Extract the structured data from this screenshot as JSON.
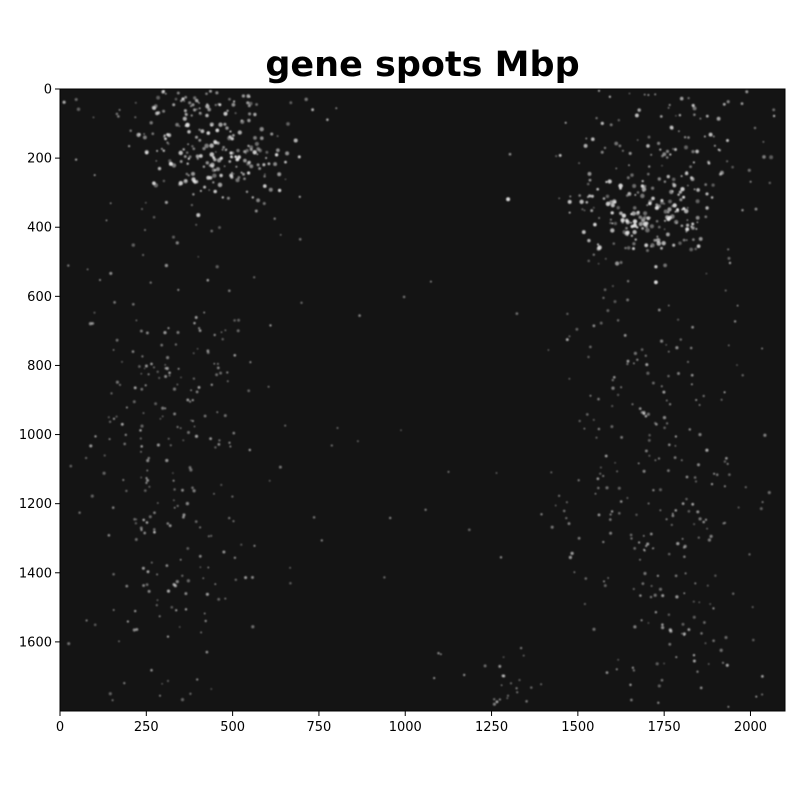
{
  "chart_data": {
    "type": "heatmap",
    "title": "gene spots Mbp",
    "xlabel": "",
    "ylabel": "",
    "xlim": [
      0,
      2100
    ],
    "ylim": [
      1800,
      0
    ],
    "x_ticks": [
      0,
      250,
      500,
      750,
      1000,
      1250,
      1500,
      1750,
      2000
    ],
    "y_ticks": [
      0,
      200,
      400,
      600,
      800,
      1000,
      1200,
      1400,
      1600
    ],
    "background_color": "#141414",
    "spot_color": "#e6e6e6",
    "colormap": "gray",
    "grid": false,
    "spot_clusters": [
      {
        "region": "top-left",
        "cx": 470,
        "cy": 190,
        "sx": 110,
        "sy": 70,
        "count": 190,
        "intensity": 0.95
      },
      {
        "region": "top-left-upper",
        "cx": 380,
        "cy": 40,
        "sx": 180,
        "sy": 30,
        "count": 70,
        "intensity": 0.7
      },
      {
        "region": "top-right",
        "cx": 1700,
        "cy": 370,
        "sx": 100,
        "sy": 60,
        "count": 170,
        "intensity": 0.95
      },
      {
        "region": "top-right-upper",
        "cx": 1760,
        "cy": 150,
        "sx": 160,
        "sy": 110,
        "count": 130,
        "intensity": 0.75
      },
      {
        "region": "left-band",
        "cx": 270,
        "cy": 1050,
        "sx": 110,
        "sy": 420,
        "count": 230,
        "intensity": 0.55
      },
      {
        "region": "left-inner-band",
        "cx": 460,
        "cy": 950,
        "sx": 90,
        "sy": 380,
        "count": 80,
        "intensity": 0.5
      },
      {
        "region": "right-band",
        "cx": 1760,
        "cy": 1250,
        "sx": 130,
        "sy": 420,
        "count": 260,
        "intensity": 0.55
      },
      {
        "region": "right-inner-band",
        "cx": 1580,
        "cy": 900,
        "sx": 60,
        "sy": 400,
        "count": 60,
        "intensity": 0.45
      },
      {
        "region": "bottom-center",
        "cx": 1300,
        "cy": 1720,
        "sx": 120,
        "sy": 40,
        "count": 25,
        "intensity": 0.5
      },
      {
        "region": "scattered",
        "cx": 1050,
        "cy": 900,
        "sx": 450,
        "sy": 500,
        "count": 40,
        "intensity": 0.35
      }
    ]
  }
}
